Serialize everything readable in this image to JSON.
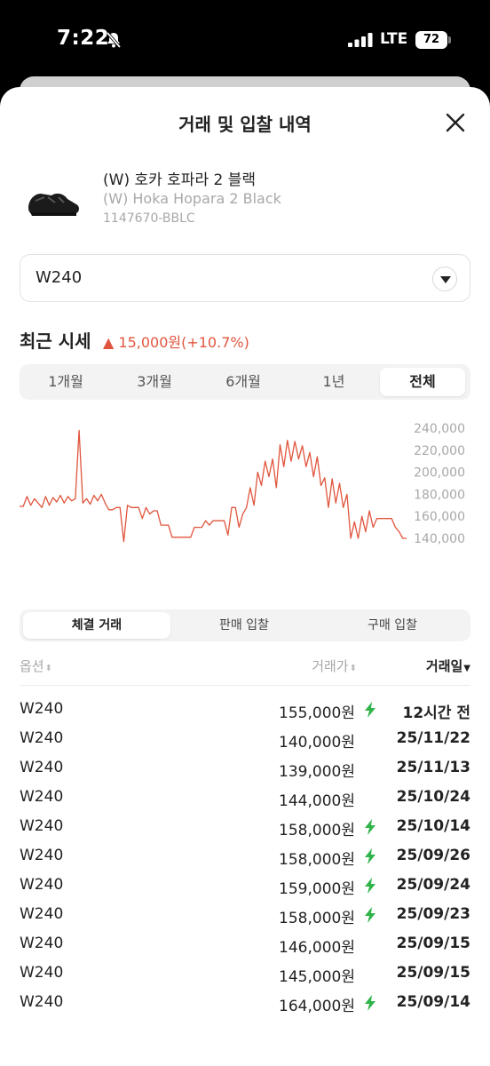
{
  "status_bar": {
    "time": "7:22",
    "network": "LTE",
    "battery": "72"
  },
  "sheet": {
    "title": "거래 및 입찰 내역"
  },
  "product": {
    "name_ko": "(W) 호카 호파라 2 블랙",
    "name_en": "(W) Hoka Hopara 2 Black",
    "code": "1147670-BBLC"
  },
  "size_select": {
    "value": "W240"
  },
  "price_section": {
    "title": "최근 시세",
    "change": "▲ 15,000원(+10.7%)",
    "change_color": "#e0553d"
  },
  "period_tabs": [
    {
      "label": "1개월",
      "active": false
    },
    {
      "label": "3개월",
      "active": false
    },
    {
      "label": "6개월",
      "active": false
    },
    {
      "label": "1년",
      "active": false
    },
    {
      "label": "전체",
      "active": true
    }
  ],
  "chart_data": {
    "type": "line",
    "y_tick_labels": [
      "240,000",
      "220,000",
      "200,000",
      "180,000",
      "160,000",
      "140,000"
    ],
    "ylim": [
      130000,
      250000
    ],
    "line_color": "#e0553d",
    "grid": false,
    "series": [
      {
        "values": [
          169000,
          169000,
          178000,
          170000,
          176000,
          172000,
          168000,
          178000,
          170000,
          177000,
          173000,
          179000,
          172000,
          178000,
          174000,
          176000,
          238000,
          172000,
          176000,
          171000,
          179000,
          174000,
          180000,
          172000,
          166000,
          166000,
          168000,
          168000,
          137000,
          170000,
          168000,
          168000,
          168000,
          158000,
          168000,
          162000,
          165000,
          165000,
          152000,
          152000,
          152000,
          141000,
          141000,
          141000,
          141000,
          141000,
          141000,
          150000,
          150000,
          150000,
          156000,
          152000,
          156000,
          156000,
          156000,
          156000,
          143000,
          168000,
          168000,
          150000,
          162000,
          168000,
          186000,
          170000,
          200000,
          188000,
          210000,
          196000,
          212000,
          186000,
          225000,
          205000,
          229000,
          210000,
          228000,
          212000,
          224000,
          205000,
          218000,
          196000,
          214000,
          188000,
          195000,
          168000,
          194000,
          172000,
          190000,
          168000,
          180000,
          140000,
          155000,
          140000,
          160000,
          146000,
          165000,
          150000,
          158000,
          158000,
          158000,
          158000,
          158000,
          150000,
          146000,
          140000,
          140000
        ]
      }
    ]
  },
  "trade_tabs": [
    {
      "label": "체결 거래",
      "active": true
    },
    {
      "label": "판매 입찰",
      "active": false
    },
    {
      "label": "구매 입찰",
      "active": false
    }
  ],
  "table": {
    "headers": {
      "option": "옵션",
      "price": "거래가",
      "date": "거래일"
    },
    "rows": [
      {
        "option": "W240",
        "price": "155,000원",
        "fast": true,
        "date": "12시간 전"
      },
      {
        "option": "W240",
        "price": "140,000원",
        "fast": false,
        "date": "25/11/22"
      },
      {
        "option": "W240",
        "price": "139,000원",
        "fast": false,
        "date": "25/11/13"
      },
      {
        "option": "W240",
        "price": "144,000원",
        "fast": false,
        "date": "25/10/24"
      },
      {
        "option": "W240",
        "price": "158,000원",
        "fast": true,
        "date": "25/10/14"
      },
      {
        "option": "W240",
        "price": "158,000원",
        "fast": true,
        "date": "25/09/26"
      },
      {
        "option": "W240",
        "price": "159,000원",
        "fast": true,
        "date": "25/09/24"
      },
      {
        "option": "W240",
        "price": "158,000원",
        "fast": true,
        "date": "25/09/23"
      },
      {
        "option": "W240",
        "price": "146,000원",
        "fast": false,
        "date": "25/09/15"
      },
      {
        "option": "W240",
        "price": "145,000원",
        "fast": false,
        "date": "25/09/15"
      },
      {
        "option": "W240",
        "price": "164,000원",
        "fast": true,
        "date": "25/09/14"
      }
    ],
    "fast_icon_color": "#2fb34a"
  }
}
